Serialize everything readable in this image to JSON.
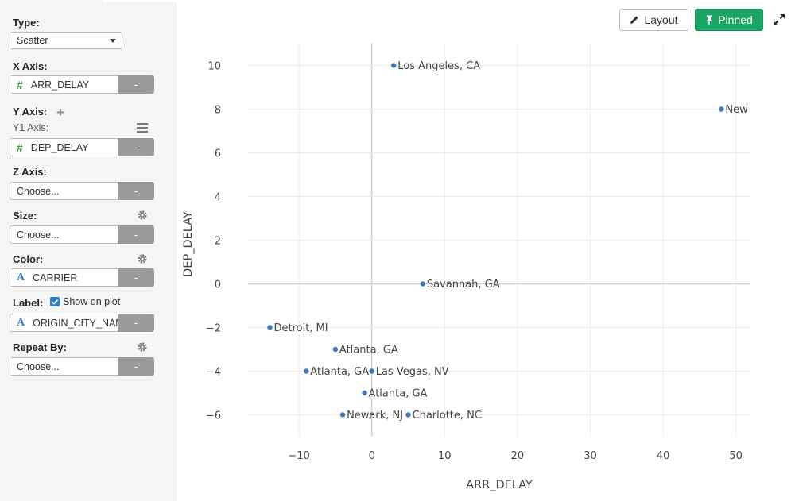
{
  "sidebar": {
    "type": {
      "label": "Type:",
      "value": "Scatter"
    },
    "x_axis": {
      "label": "X Axis:",
      "type_icon": "hash-icon",
      "value": "ARR_DELAY",
      "remove_label": "-"
    },
    "y_axis": {
      "label": "Y Axis:",
      "sub_label": "Y1 Axis:",
      "type_icon": "hash-icon",
      "value": "DEP_DELAY",
      "remove_label": "-"
    },
    "z_axis": {
      "label": "Z Axis:",
      "placeholder": "Choose...",
      "remove_label": "-"
    },
    "size": {
      "label": "Size:",
      "placeholder": "Choose...",
      "remove_label": "-"
    },
    "color": {
      "label": "Color:",
      "type_icon": "text-type-icon",
      "type_glyph": "A",
      "value": "CARRIER",
      "remove_label": "-"
    },
    "label": {
      "label": "Label:",
      "show_on_plot": "Show on plot",
      "show_on_plot_checked": true,
      "type_icon": "text-type-icon",
      "type_glyph": "A",
      "value": "ORIGIN_CITY_NAME",
      "remove_label": "-"
    },
    "repeat_by": {
      "label": "Repeat By:",
      "placeholder": "Choose...",
      "remove_label": "-"
    }
  },
  "toolbar": {
    "layout_label": "Layout",
    "pinned_label": "Pinned",
    "pinned_color": "#1aa564"
  },
  "chart_data": {
    "type": "scatter",
    "xlabel": "ARR_DELAY",
    "ylabel": "DEP_DELAY",
    "xlim": [
      -17,
      52
    ],
    "ylim": [
      -7,
      11
    ],
    "x_ticks": [
      -10,
      0,
      10,
      20,
      30,
      40,
      50
    ],
    "y_ticks": [
      -6,
      -4,
      -2,
      0,
      2,
      4,
      6,
      8,
      10
    ],
    "grid": true,
    "point_color": "#3d7ab8",
    "points": [
      {
        "x": 3,
        "y": 10,
        "label": "Los Angeles, CA"
      },
      {
        "x": 48,
        "y": 8,
        "label": "New York, NY"
      },
      {
        "x": 7,
        "y": 0,
        "label": "Savannah, GA"
      },
      {
        "x": -14,
        "y": -2,
        "label": "Detroit, MI"
      },
      {
        "x": -5,
        "y": -3,
        "label": "Atlanta, GA"
      },
      {
        "x": -9,
        "y": -4,
        "label": "Atlanta, GA"
      },
      {
        "x": 0,
        "y": -4,
        "label": "Las Vegas, NV"
      },
      {
        "x": -1,
        "y": -5,
        "label": "Atlanta, GA"
      },
      {
        "x": -4,
        "y": -6,
        "label": "Newark, NJ"
      },
      {
        "x": 5,
        "y": -6,
        "label": "Charlotte, NC"
      }
    ]
  }
}
